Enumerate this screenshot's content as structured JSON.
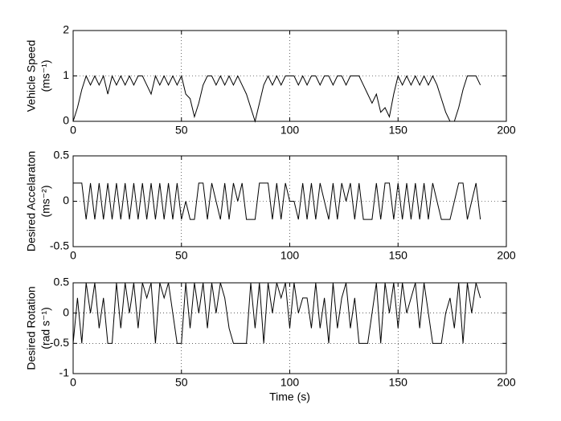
{
  "chart_data": [
    {
      "type": "line",
      "ylabel": [
        "Vehicle Speed",
        "(ms⁻¹)"
      ],
      "color": "#000000",
      "grid": true,
      "xlim": [
        0,
        200
      ],
      "ylim": [
        0,
        2
      ],
      "xticks": [
        0,
        50,
        100,
        150,
        200
      ],
      "yticks": [
        0,
        1,
        2
      ],
      "x": [
        0,
        2,
        4,
        6,
        8,
        10,
        12,
        14,
        16,
        18,
        20,
        22,
        24,
        26,
        28,
        30,
        32,
        34,
        36,
        38,
        40,
        42,
        44,
        46,
        48,
        50,
        52,
        54,
        56,
        58,
        60,
        62,
        64,
        66,
        68,
        70,
        72,
        74,
        76,
        78,
        80,
        82,
        84,
        86,
        88,
        90,
        92,
        94,
        96,
        98,
        100,
        102,
        104,
        106,
        108,
        110,
        112,
        114,
        116,
        118,
        120,
        122,
        124,
        126,
        128,
        130,
        132,
        134,
        136,
        138,
        140,
        142,
        144,
        146,
        148,
        150,
        152,
        154,
        156,
        158,
        160,
        162,
        164,
        166,
        168,
        170,
        172,
        174,
        176,
        178,
        180,
        182,
        184,
        186,
        188
      ],
      "values": [
        0,
        0.3,
        0.7,
        1,
        0.8,
        1,
        0.8,
        1,
        0.6,
        1,
        0.8,
        1,
        0.8,
        1,
        0.8,
        1,
        1,
        0.8,
        0.6,
        1,
        0.8,
        1,
        0.8,
        1,
        0.8,
        1,
        0.6,
        0.5,
        0.1,
        0.4,
        0.8,
        1,
        1,
        0.8,
        1,
        0.8,
        1,
        0.8,
        1,
        0.8,
        0.6,
        0.3,
        0,
        0.4,
        0.8,
        1,
        0.8,
        1,
        0.8,
        1,
        1,
        1,
        0.8,
        1,
        0.8,
        1,
        1,
        0.8,
        1,
        1,
        0.8,
        1,
        1,
        0.8,
        1,
        1,
        1,
        0.8,
        0.6,
        0.4,
        0.6,
        0.2,
        0.3,
        0.1,
        0.6,
        1,
        0.8,
        1,
        0.8,
        1,
        0.8,
        1,
        0.8,
        1,
        0.8,
        0.5,
        0.2,
        0,
        0,
        0.3,
        0.7,
        1,
        1,
        1,
        0.8
      ]
    },
    {
      "type": "line",
      "ylabel": [
        "Desired Accelaraton",
        "(ms⁻²)"
      ],
      "color": "#000000",
      "grid": true,
      "xlim": [
        0,
        200
      ],
      "ylim": [
        -0.5,
        0.5
      ],
      "xticks": [
        0,
        50,
        100,
        150,
        200
      ],
      "yticks": [
        -0.5,
        0,
        0.5
      ],
      "x": [
        0,
        2,
        4,
        6,
        8,
        10,
        12,
        14,
        16,
        18,
        20,
        22,
        24,
        26,
        28,
        30,
        32,
        34,
        36,
        38,
        40,
        42,
        44,
        46,
        48,
        50,
        52,
        54,
        56,
        58,
        60,
        62,
        64,
        66,
        68,
        70,
        72,
        74,
        76,
        78,
        80,
        82,
        84,
        86,
        88,
        90,
        92,
        94,
        96,
        98,
        100,
        102,
        104,
        106,
        108,
        110,
        112,
        114,
        116,
        118,
        120,
        122,
        124,
        126,
        128,
        130,
        132,
        134,
        136,
        138,
        140,
        142,
        144,
        146,
        148,
        150,
        152,
        154,
        156,
        158,
        160,
        162,
        164,
        166,
        168,
        170,
        172,
        174,
        176,
        178,
        180,
        182,
        184,
        186,
        188
      ],
      "values": [
        0.2,
        0.2,
        0.2,
        -0.2,
        0.2,
        -0.2,
        0.2,
        -0.2,
        0.2,
        -0.2,
        0.2,
        -0.2,
        0.2,
        -0.2,
        0.2,
        -0.2,
        0.2,
        -0.2,
        0.2,
        -0.2,
        0.2,
        -0.2,
        0.2,
        -0.2,
        0.2,
        -0.2,
        0,
        -0.2,
        -0.2,
        0.2,
        0.2,
        -0.2,
        0.2,
        0,
        -0.2,
        0.2,
        -0.2,
        0.2,
        0,
        0.2,
        -0.2,
        -0.2,
        -0.2,
        0.2,
        0.2,
        0.2,
        -0.2,
        0.2,
        -0.2,
        0.2,
        0,
        0,
        -0.2,
        0.2,
        -0.2,
        0.2,
        -0.2,
        0.2,
        0,
        -0.2,
        0.2,
        -0.2,
        0.2,
        0,
        0.2,
        -0.2,
        0.2,
        -0.2,
        -0.2,
        -0.2,
        0.2,
        -0.2,
        0.2,
        0.2,
        -0.2,
        0.2,
        -0.2,
        0.2,
        -0.2,
        0.2,
        -0.2,
        0.2,
        -0.2,
        0.2,
        0,
        -0.2,
        -0.2,
        -0.2,
        0,
        0.2,
        0.2,
        -0.2,
        0,
        0.2,
        -0.2
      ]
    },
    {
      "type": "line",
      "ylabel": [
        "Desired Rotation",
        "(rad s⁻¹)"
      ],
      "xlabel": "Time (s)",
      "color": "#000000",
      "grid": true,
      "xlim": [
        0,
        200
      ],
      "ylim": [
        -1,
        0.5
      ],
      "xticks": [
        0,
        50,
        100,
        150,
        200
      ],
      "yticks": [
        -1,
        -0.5,
        0,
        0.5
      ],
      "x": [
        0,
        2,
        4,
        6,
        8,
        10,
        12,
        14,
        16,
        18,
        20,
        22,
        24,
        26,
        28,
        30,
        32,
        34,
        36,
        38,
        40,
        42,
        44,
        46,
        48,
        50,
        52,
        54,
        56,
        58,
        60,
        62,
        64,
        66,
        68,
        70,
        72,
        74,
        76,
        78,
        80,
        82,
        84,
        86,
        88,
        90,
        92,
        94,
        96,
        98,
        100,
        102,
        104,
        106,
        108,
        110,
        112,
        114,
        116,
        118,
        120,
        122,
        124,
        126,
        128,
        130,
        132,
        134,
        136,
        138,
        140,
        142,
        144,
        146,
        148,
        150,
        152,
        154,
        156,
        158,
        160,
        162,
        164,
        166,
        168,
        170,
        172,
        174,
        176,
        178,
        180,
        182,
        184,
        186,
        188
      ],
      "values": [
        -0.5,
        0.25,
        -0.5,
        0.5,
        0,
        0.5,
        -0.25,
        0.25,
        -0.5,
        -0.5,
        0.5,
        -0.25,
        0.5,
        0,
        0.5,
        -0.25,
        0.5,
        0.25,
        0.5,
        -0.5,
        0.5,
        0.25,
        0.5,
        0,
        -0.5,
        -0.5,
        0.5,
        -0.25,
        0.5,
        0,
        0.5,
        -0.25,
        0.5,
        0,
        0.5,
        0.25,
        -0.25,
        -0.5,
        -0.5,
        -0.5,
        -0.5,
        0.5,
        -0.25,
        0.5,
        -0.5,
        0.5,
        0,
        0.5,
        0.25,
        0.5,
        -0.25,
        0.5,
        0,
        0.25,
        0.25,
        -0.25,
        0.5,
        -0.25,
        0.25,
        -0.5,
        0.5,
        -0.25,
        0.25,
        0.5,
        -0.25,
        0.25,
        -0.5,
        -0.5,
        -0.5,
        0,
        0.5,
        -0.5,
        0.5,
        0,
        0.5,
        -0.25,
        0.5,
        0,
        0.25,
        0.5,
        -0.25,
        0.5,
        0,
        -0.5,
        -0.5,
        -0.5,
        0,
        0.25,
        -0.25,
        0.5,
        -0.5,
        0.5,
        0,
        0.5,
        0.25
      ]
    }
  ]
}
